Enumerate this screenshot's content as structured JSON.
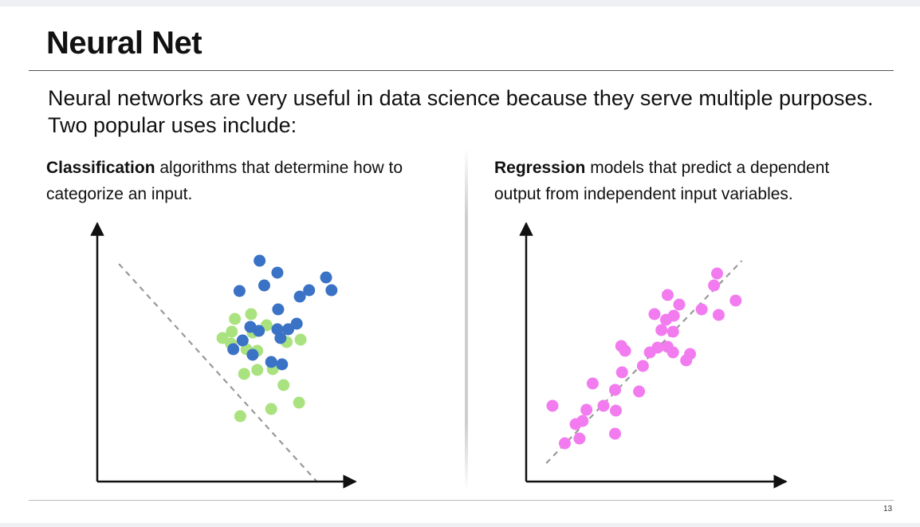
{
  "slide": {
    "title": "Neural Net",
    "intro": "Neural networks are very useful in data science because they serve multiple purposes. Two popular uses include:",
    "page_number": "13"
  },
  "left_column": {
    "bold": "Classification",
    "rest": " algorithms that determine how to categorize an input."
  },
  "right_column": {
    "bold": "Regression",
    "rest": " models that predict a dependent output from independent input variables."
  },
  "colors": {
    "blue": "#3a72c6",
    "green": "#a9e27f",
    "magenta": "#f27cef",
    "dashed": "#999999",
    "axis": "#111111"
  },
  "chart_data": [
    {
      "type": "scatter",
      "title": "",
      "xlabel": "",
      "ylabel": "",
      "grid": false,
      "series": [
        {
          "points": [
            [
              185,
              82
            ],
            [
              225,
              91
            ],
            [
              261,
              99
            ],
            [
              241,
              121
            ],
            [
              190,
              135
            ],
            [
              207,
              140
            ],
            [
              227,
              141
            ],
            [
              207,
              164
            ],
            [
              173,
              173
            ],
            [
              193,
              166
            ],
            [
              245,
              175
            ],
            [
              162,
              180
            ],
            [
              201,
              187
            ],
            [
              174,
              188
            ],
            [
              219,
              196
            ],
            [
              263,
              178
            ],
            [
              178,
              204
            ],
            [
              199,
              210
            ]
          ]
        },
        {
          "points": [
            [
              296,
              256
            ],
            [
              184,
              239
            ],
            [
              210,
              277
            ],
            [
              233,
              262
            ],
            [
              216,
              246
            ],
            [
              234,
              216
            ],
            [
              303,
              240
            ],
            [
              262,
              232
            ],
            [
              274,
              240
            ],
            [
              233,
              191
            ],
            [
              258,
              198
            ],
            [
              198,
              194
            ],
            [
              209,
              189
            ],
            [
              237,
              180
            ],
            [
              247,
              191
            ],
            [
              225,
              150
            ],
            [
              239,
              147
            ],
            [
              201,
              159
            ],
            [
              188,
              177
            ],
            [
              176,
              166
            ]
          ]
        }
      ],
      "dividers": [
        {
          "kind": "dashed",
          "from": [
            28,
            273
          ],
          "to": [
            284,
            0
          ]
        }
      ],
      "xlim": [
        0,
        330
      ],
      "ylim": [
        0,
        320
      ]
    },
    {
      "type": "scatter",
      "title": "",
      "xlabel": "",
      "ylabel": "",
      "grid": false,
      "series": [
        {
          "points": [
            [
              34,
              95
            ],
            [
              50,
              48
            ],
            [
              69,
              54
            ],
            [
              64,
              72
            ],
            [
              73,
              76
            ],
            [
              78,
              90
            ],
            [
              86,
              123
            ],
            [
              100,
              95
            ],
            [
              115,
              60
            ],
            [
              115,
              115
            ],
            [
              116,
              89
            ],
            [
              124,
              137
            ],
            [
              123,
              170
            ],
            [
              128,
              164
            ],
            [
              146,
              113
            ],
            [
              151,
              145
            ],
            [
              160,
              162
            ],
            [
              170,
              168
            ],
            [
              166,
              210
            ],
            [
              175,
              190
            ],
            [
              183,
              234
            ],
            [
              181,
              203
            ],
            [
              183,
              169
            ],
            [
              190,
              188
            ],
            [
              190,
              162
            ],
            [
              191,
              208
            ],
            [
              198,
              222
            ],
            [
              207,
              152
            ],
            [
              212,
              160
            ],
            [
              227,
              216
            ],
            [
              243,
              246
            ],
            [
              247,
              261
            ],
            [
              271,
              227
            ],
            [
              249,
              209
            ]
          ]
        }
      ],
      "trend": {
        "kind": "dashed",
        "from": [
          26,
          23
        ],
        "to": [
          279,
          277
        ]
      },
      "xlim": [
        0,
        330
      ],
      "ylim": [
        0,
        320
      ]
    }
  ]
}
